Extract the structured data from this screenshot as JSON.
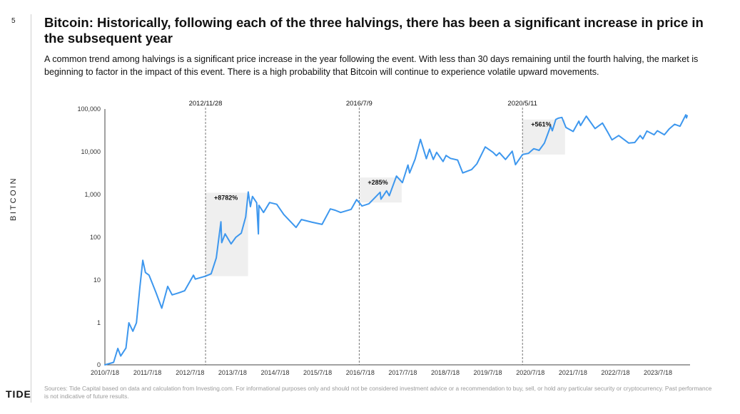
{
  "page": {
    "number": "5",
    "side_label": "BITCOIN",
    "logo": "TIDE",
    "title": "Bitcoin: Historically, following each of the three halvings, there has been a significant increase in price in the subsequent year",
    "subtitle": "A common trend among halvings is a significant price increase in the year following the event. With less than 30 days remaining until the fourth halving, the market is beginning to factor in the impact of this event. There is a high probability that Bitcoin will continue to experience volatile upward movements.",
    "footnote": "Sources: Tide Capital based on data and calculation from Investing.com. For informational purposes only and should not be considered investment advice or a recommendation to buy, sell, or hold any particular security or cryptocurrency. Past performance is not indicative of future results."
  },
  "colors": {
    "line": "#3d97ee",
    "shade": "#efefef",
    "halving_line": "#555555",
    "axis": "#444444"
  },
  "chart_data": {
    "type": "line",
    "yscale": "log",
    "title": "",
    "xlabel": "",
    "ylabel": "",
    "ylim": [
      0,
      100000
    ],
    "xlim": [
      "2010-07-18",
      "2024-03-25"
    ],
    "grid": false,
    "legend": "none",
    "yticks": [
      {
        "value": 0,
        "label": "0"
      },
      {
        "value": 1,
        "label": "1"
      },
      {
        "value": 10,
        "label": "10"
      },
      {
        "value": 100,
        "label": "100"
      },
      {
        "value": 1000,
        "label": "1,000"
      },
      {
        "value": 10000,
        "label": "10,000"
      },
      {
        "value": 100000,
        "label": "100,000"
      }
    ],
    "xticks": [
      {
        "value": "2010-07-18",
        "label": "2010/7/18"
      },
      {
        "value": "2011-07-18",
        "label": "2011/7/18"
      },
      {
        "value": "2012-07-18",
        "label": "2012/7/18"
      },
      {
        "value": "2013-07-18",
        "label": "2013/7/18"
      },
      {
        "value": "2014-07-18",
        "label": "2014/7/18"
      },
      {
        "value": "2015-07-18",
        "label": "2015/7/18"
      },
      {
        "value": "2016-07-18",
        "label": "2016/7/18"
      },
      {
        "value": "2017-07-18",
        "label": "2017/7/18"
      },
      {
        "value": "2018-07-18",
        "label": "2018/7/18"
      },
      {
        "value": "2019-07-18",
        "label": "2019/7/18"
      },
      {
        "value": "2020-07-18",
        "label": "2020/7/18"
      },
      {
        "value": "2021-07-18",
        "label": "2021/7/18"
      },
      {
        "value": "2022-07-18",
        "label": "2022/7/18"
      },
      {
        "value": "2023-07-18",
        "label": "2023/7/18"
      }
    ],
    "halvings": [
      {
        "date": "2012-11-28",
        "label": "2012/11/28",
        "gain": "+8782%",
        "start_price": 12.3,
        "end_price": 1100,
        "end_date": "2013-11-28"
      },
      {
        "date": "2016-07-09",
        "label": "2016/7/9",
        "gain": "+285%",
        "start_price": 650,
        "end_price": 2500,
        "end_date": "2017-07-09"
      },
      {
        "date": "2020-05-11",
        "label": "2020/5/11",
        "gain": "+561%",
        "start_price": 8600,
        "end_price": 56800,
        "end_date": "2021-05-11"
      }
    ],
    "series": [
      {
        "points": [
          [
            "2010-07-18",
            0.0
          ],
          [
            "2010-10-01",
            0.06
          ],
          [
            "2010-11-06",
            0.39
          ],
          [
            "2010-12-01",
            0.21
          ],
          [
            "2011-01-15",
            0.4
          ],
          [
            "2011-02-09",
            1.0
          ],
          [
            "2011-03-15",
            0.8
          ],
          [
            "2011-04-15",
            1.0
          ],
          [
            "2011-05-15",
            7.0
          ],
          [
            "2011-06-08",
            29.0
          ],
          [
            "2011-07-01",
            15.0
          ],
          [
            "2011-08-01",
            13.0
          ],
          [
            "2011-09-01",
            8.0
          ],
          [
            "2011-10-01",
            5.0
          ],
          [
            "2011-11-18",
            2.2
          ],
          [
            "2012-01-08",
            7.1
          ],
          [
            "2012-02-15",
            4.5
          ],
          [
            "2012-04-01",
            4.9
          ],
          [
            "2012-06-01",
            5.6
          ],
          [
            "2012-08-16",
            13.0
          ],
          [
            "2012-09-01",
            10.5
          ],
          [
            "2012-11-28",
            12.3
          ],
          [
            "2013-01-15",
            14.0
          ],
          [
            "2013-02-28",
            33.0
          ],
          [
            "2013-04-09",
            230.0
          ],
          [
            "2013-04-16",
            75.0
          ],
          [
            "2013-05-15",
            120.0
          ],
          [
            "2013-07-05",
            70.0
          ],
          [
            "2013-08-15",
            100.0
          ],
          [
            "2013-10-01",
            125.0
          ],
          [
            "2013-11-08",
            300.0
          ],
          [
            "2013-11-30",
            1150.0
          ],
          [
            "2013-12-18",
            520.0
          ],
          [
            "2014-01-05",
            900.0
          ],
          [
            "2014-02-10",
            640.0
          ],
          [
            "2014-02-25",
            120.0
          ],
          [
            "2014-03-01",
            560.0
          ],
          [
            "2014-04-10",
            380.0
          ],
          [
            "2014-06-01",
            650.0
          ],
          [
            "2014-08-01",
            590.0
          ],
          [
            "2014-10-01",
            340.0
          ],
          [
            "2015-01-14",
            170.0
          ],
          [
            "2015-03-01",
            260.0
          ],
          [
            "2015-06-01",
            225.0
          ],
          [
            "2015-08-25",
            200.0
          ],
          [
            "2015-11-04",
            460.0
          ],
          [
            "2015-12-15",
            430.0
          ],
          [
            "2016-02-01",
            380.0
          ],
          [
            "2016-05-01",
            450.0
          ],
          [
            "2016-06-17",
            760.0
          ],
          [
            "2016-07-09",
            650.0
          ],
          [
            "2016-08-02",
            540.0
          ],
          [
            "2016-10-01",
            610.0
          ],
          [
            "2017-01-05",
            1130.0
          ],
          [
            "2017-01-12",
            780.0
          ],
          [
            "2017-03-01",
            1220.0
          ],
          [
            "2017-03-24",
            940.0
          ],
          [
            "2017-05-25",
            2700.0
          ],
          [
            "2017-07-15",
            1900.0
          ],
          [
            "2017-09-01",
            4900.0
          ],
          [
            "2017-09-15",
            3200.0
          ],
          [
            "2017-11-01",
            6700.0
          ],
          [
            "2017-12-17",
            19500.0
          ],
          [
            "2018-02-06",
            6900.0
          ],
          [
            "2018-03-05",
            11500.0
          ],
          [
            "2018-04-06",
            6600.0
          ],
          [
            "2018-05-05",
            9700.0
          ],
          [
            "2018-06-29",
            5900.0
          ],
          [
            "2018-07-25",
            8200.0
          ],
          [
            "2018-09-01",
            7000.0
          ],
          [
            "2018-11-01",
            6400.0
          ],
          [
            "2018-12-15",
            3200.0
          ],
          [
            "2019-03-01",
            3850.0
          ],
          [
            "2019-04-15",
            5200.0
          ],
          [
            "2019-06-26",
            13000.0
          ],
          [
            "2019-09-01",
            9700.0
          ],
          [
            "2019-09-30",
            8100.0
          ],
          [
            "2019-10-26",
            9500.0
          ],
          [
            "2019-12-17",
            6600.0
          ],
          [
            "2020-02-13",
            10300.0
          ],
          [
            "2020-03-12",
            5000.0
          ],
          [
            "2020-05-11",
            8600.0
          ],
          [
            "2020-07-01",
            9200.0
          ],
          [
            "2020-08-15",
            11800.0
          ],
          [
            "2020-10-01",
            10800.0
          ],
          [
            "2020-11-15",
            16000.0
          ],
          [
            "2021-01-08",
            40000.0
          ],
          [
            "2021-01-22",
            31000.0
          ],
          [
            "2021-02-21",
            57000.0
          ],
          [
            "2021-03-14",
            61000.0
          ],
          [
            "2021-04-14",
            63500.0
          ],
          [
            "2021-05-19",
            37000.0
          ],
          [
            "2021-07-20",
            29800.0
          ],
          [
            "2021-09-07",
            52000.0
          ],
          [
            "2021-09-21",
            41000.0
          ],
          [
            "2021-11-10",
            68000.0
          ],
          [
            "2022-01-24",
            35000.0
          ],
          [
            "2022-03-29",
            47000.0
          ],
          [
            "2022-05-12",
            29000.0
          ],
          [
            "2022-06-18",
            19000.0
          ],
          [
            "2022-08-15",
            24000.0
          ],
          [
            "2022-11-09",
            16000.0
          ],
          [
            "2022-12-31",
            16500.0
          ],
          [
            "2023-02-15",
            24000.0
          ],
          [
            "2023-03-10",
            20000.0
          ],
          [
            "2023-04-14",
            30500.0
          ],
          [
            "2023-06-15",
            25000.0
          ],
          [
            "2023-07-13",
            31000.0
          ],
          [
            "2023-09-11",
            25000.0
          ],
          [
            "2023-10-24",
            34500.0
          ],
          [
            "2023-12-08",
            44000.0
          ],
          [
            "2024-01-23",
            39500.0
          ],
          [
            "2024-02-15",
            52000.0
          ],
          [
            "2024-03-13",
            73000.0
          ],
          [
            "2024-03-19",
            62000.0
          ],
          [
            "2024-03-25",
            70000.0
          ]
        ]
      }
    ]
  }
}
